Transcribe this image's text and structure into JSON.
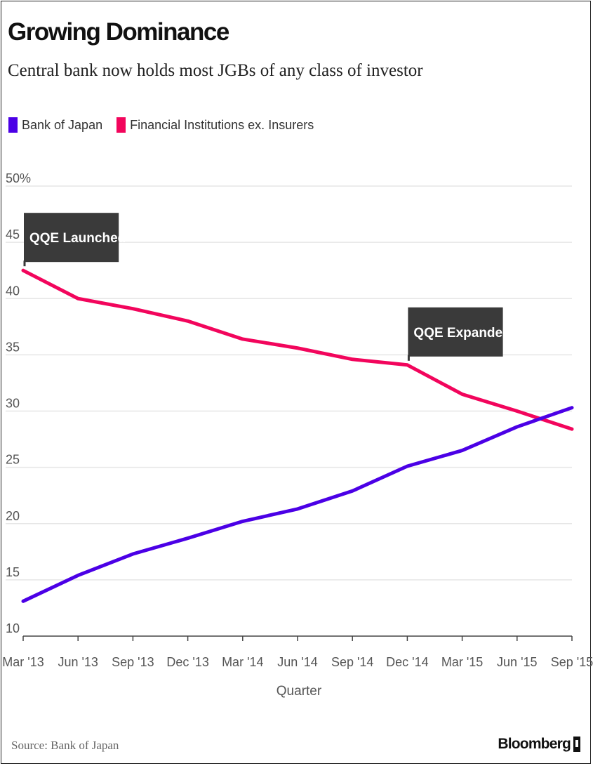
{
  "chart_data": {
    "type": "line",
    "title": "Growing Dominance",
    "subtitle": "Central bank now holds most JGBs of any class of investor",
    "xlabel": "Quarter",
    "ylabel": "",
    "x": [
      "Mar '13",
      "Jun '13",
      "Sep '13",
      "Dec '13",
      "Mar '14",
      "Jun '14",
      "Sep '14",
      "Dec '14",
      "Mar '15",
      "Jun '15",
      "Sep '15"
    ],
    "ylim": [
      10,
      50
    ],
    "yticks": [
      "10",
      "15",
      "20",
      "25",
      "30",
      "35",
      "40",
      "45",
      "50%"
    ],
    "ytick_values": [
      10,
      15,
      20,
      25,
      30,
      35,
      40,
      45,
      50
    ],
    "grid": true,
    "legend_position": "top-left",
    "series": [
      {
        "name": "Bank of Japan",
        "color": "#4b00e6",
        "values": [
          13.1,
          15.4,
          17.3,
          18.7,
          20.2,
          21.3,
          22.9,
          25.1,
          26.5,
          28.6,
          30.3
        ]
      },
      {
        "name": "Financial Institutions ex. Insurers",
        "color": "#f2055c",
        "values": [
          42.5,
          40.0,
          39.1,
          38.0,
          36.4,
          35.6,
          34.6,
          34.1,
          31.5,
          30.0,
          28.4
        ]
      }
    ],
    "annotations": [
      {
        "label": "QQE Launched",
        "x": "Mar '13",
        "y": 42.5,
        "side": "right"
      },
      {
        "label": "QQE Expanded",
        "x": "Dec '14",
        "y": 34.1,
        "side": "right"
      }
    ],
    "source": "Source: Bank of Japan",
    "brand": "Bloomberg"
  }
}
